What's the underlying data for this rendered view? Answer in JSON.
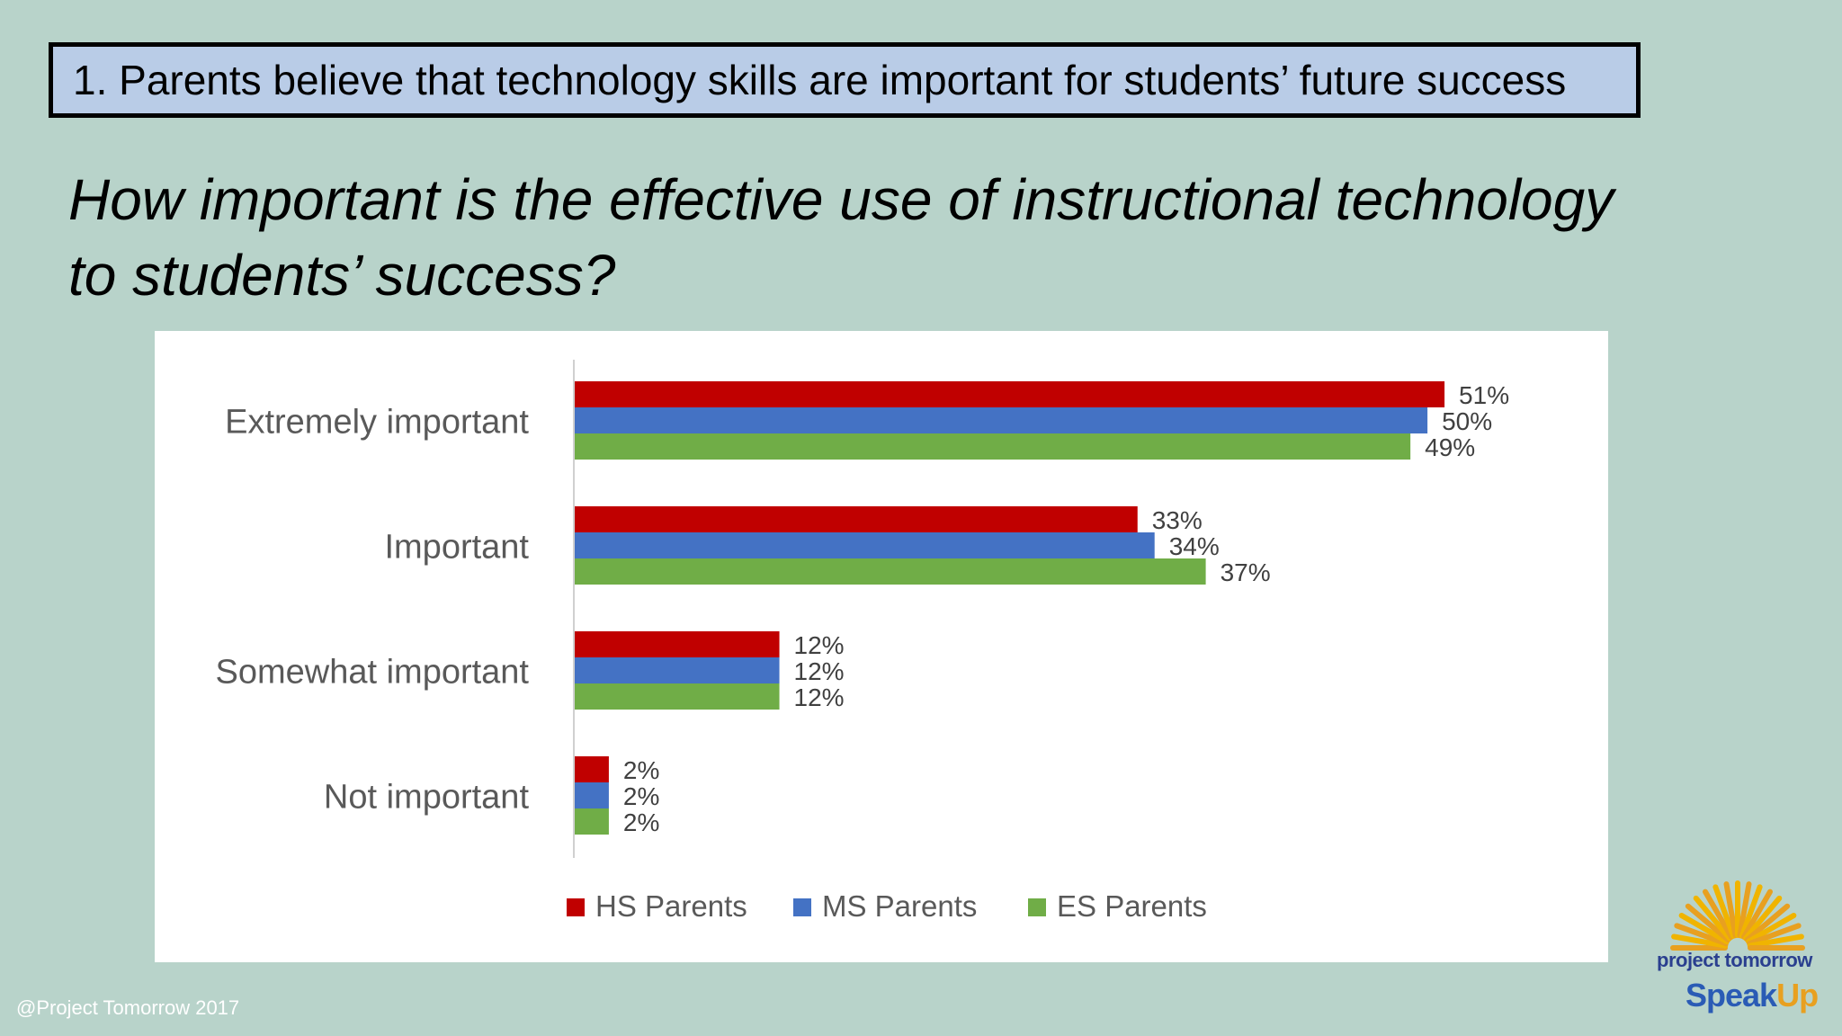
{
  "header": {
    "title": "1.  Parents believe that technology skills are important for students’ future success"
  },
  "question": {
    "line1": "How important is the effective use of instructional technology",
    "line2": "to students’ success?"
  },
  "footer": {
    "credit": "@Project Tomorrow 2017"
  },
  "logo": {
    "line1": "project tomorrow",
    "line2a": "Speak",
    "line2b": "Up"
  },
  "chart_data": {
    "type": "bar",
    "orientation": "horizontal",
    "categories": [
      "Extremely important",
      "Important",
      "Somewhat important",
      "Not important"
    ],
    "series": [
      {
        "name": "HS Parents",
        "color": "#c00000",
        "values": [
          51,
          33,
          12,
          2
        ],
        "labels": [
          "51%",
          "33%",
          "12%",
          "2%"
        ]
      },
      {
        "name": "MS Parents",
        "color": "#4472c4",
        "values": [
          50,
          34,
          12,
          2
        ],
        "labels": [
          "50%",
          "34%",
          "12%",
          "2%"
        ]
      },
      {
        "name": "ES Parents",
        "color": "#70ad47",
        "values": [
          49,
          37,
          12,
          2
        ],
        "labels": [
          "49%",
          "37%",
          "12%",
          "2%"
        ]
      }
    ],
    "unit": "%",
    "xlim": [
      0,
      60
    ],
    "legend": "bottom",
    "grid": false
  }
}
